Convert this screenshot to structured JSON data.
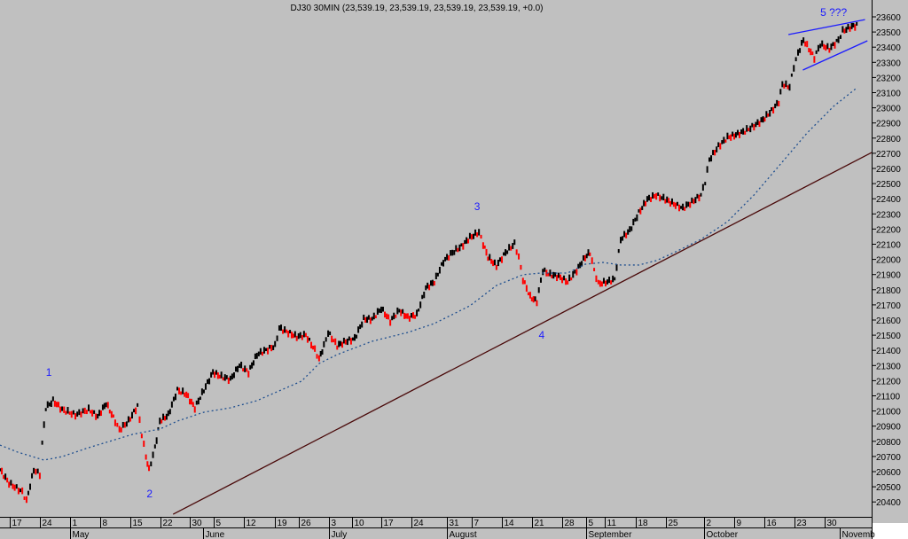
{
  "title": "DJ30 30MIN (23,539.19, 23,539.19, 23,539.19, 23,539.19, +0.0)",
  "colors": {
    "background": "#c0c0c0",
    "up_bar": "#000000",
    "down_bar": "#ff0000",
    "moving_average": "#1f4f8f",
    "trendline": "#4a0a0a",
    "channel": "#1a1aff",
    "wave_label": "#1a1aff"
  },
  "chart_data": {
    "type": "ohlc-line",
    "title": "DJ30 30MIN (23,539.19, 23,539.19, 23,539.19, 23,539.19, +0.0)",
    "x_unit": "trading sessions since Apr 17",
    "xlim": [
      -1.6,
      142.9
    ],
    "ylim": [
      20330,
      23700
    ],
    "yticks": [
      20400,
      20500,
      20600,
      20700,
      20800,
      20900,
      21000,
      21100,
      21200,
      21300,
      21400,
      21500,
      21600,
      21700,
      21800,
      21900,
      22000,
      22100,
      22200,
      22300,
      22400,
      22500,
      22600,
      22700,
      22800,
      22900,
      23000,
      23100,
      23200,
      23300,
      23400,
      23500,
      23600
    ],
    "xticks": [
      {
        "t": 0,
        "label": "17"
      },
      {
        "t": 5,
        "label": "24"
      },
      {
        "t": 10,
        "label": "1"
      },
      {
        "t": 15,
        "label": "8"
      },
      {
        "t": 20,
        "label": "15"
      },
      {
        "t": 25,
        "label": "22"
      },
      {
        "t": 29.9,
        "label": "30"
      },
      {
        "t": 33.8,
        "label": "5"
      },
      {
        "t": 38.8,
        "label": "12"
      },
      {
        "t": 44,
        "label": "19"
      },
      {
        "t": 48,
        "label": "26"
      },
      {
        "t": 53,
        "label": "3"
      },
      {
        "t": 56.7,
        "label": "10"
      },
      {
        "t": 61.6,
        "label": "17"
      },
      {
        "t": 66.6,
        "label": "24"
      },
      {
        "t": 72.5,
        "label": "31"
      },
      {
        "t": 76.6,
        "label": "7"
      },
      {
        "t": 81.6,
        "label": "14"
      },
      {
        "t": 86.6,
        "label": "21"
      },
      {
        "t": 91.6,
        "label": "28"
      },
      {
        "t": 95.6,
        "label": "5"
      },
      {
        "t": 98.7,
        "label": "11"
      },
      {
        "t": 103.8,
        "label": "18"
      },
      {
        "t": 108.8,
        "label": "25"
      },
      {
        "t": 115.1,
        "label": "2"
      },
      {
        "t": 120.1,
        "label": "9"
      },
      {
        "t": 125.1,
        "label": "16"
      },
      {
        "t": 130.1,
        "label": "23"
      },
      {
        "t": 135.1,
        "label": "30"
      }
    ],
    "months": [
      {
        "t": 10,
        "label": "May"
      },
      {
        "t": 32.1,
        "label": "June"
      },
      {
        "t": 52.9,
        "label": "July"
      },
      {
        "t": 72.5,
        "label": "August"
      },
      {
        "t": 95.6,
        "label": "September"
      },
      {
        "t": 115.1,
        "label": "October"
      },
      {
        "t": 137.6,
        "label": "Novemb"
      }
    ],
    "price": [
      [
        -1.6,
        20612
      ],
      [
        -0.1,
        20524
      ],
      [
        2.1,
        20466
      ],
      [
        2.8,
        20407
      ],
      [
        4.0,
        20612
      ],
      [
        5.0,
        20583
      ],
      [
        5.4,
        20787
      ],
      [
        6.0,
        21021
      ],
      [
        7.2,
        21068
      ],
      [
        8.7,
        21009
      ],
      [
        10.9,
        20974
      ],
      [
        13.1,
        21009
      ],
      [
        14.6,
        20963
      ],
      [
        16.0,
        21050
      ],
      [
        17.5,
        20933
      ],
      [
        18.2,
        20875
      ],
      [
        19.7,
        20933
      ],
      [
        21.2,
        21033
      ],
      [
        21.9,
        20846
      ],
      [
        22.6,
        20700
      ],
      [
        23.1,
        20612
      ],
      [
        24.1,
        20758
      ],
      [
        24.9,
        20933
      ],
      [
        26.3,
        20974
      ],
      [
        27.8,
        21138
      ],
      [
        29.3,
        21109
      ],
      [
        30.7,
        21021
      ],
      [
        32.2,
        21138
      ],
      [
        33.7,
        21255
      ],
      [
        35.1,
        21226
      ],
      [
        36.6,
        21208
      ],
      [
        38.1,
        21302
      ],
      [
        39.6,
        21255
      ],
      [
        41.0,
        21372
      ],
      [
        42.5,
        21401
      ],
      [
        44.0,
        21430
      ],
      [
        44.7,
        21547
      ],
      [
        46.2,
        21518
      ],
      [
        47.6,
        21489
      ],
      [
        49.1,
        21501
      ],
      [
        50.6,
        21401
      ],
      [
        51.3,
        21343
      ],
      [
        52.1,
        21430
      ],
      [
        52.8,
        21518
      ],
      [
        54.3,
        21430
      ],
      [
        55.7,
        21459
      ],
      [
        57.2,
        21477
      ],
      [
        58.7,
        21606
      ],
      [
        60.1,
        21606
      ],
      [
        61.6,
        21676
      ],
      [
        63.1,
        21594
      ],
      [
        64.6,
        21664
      ],
      [
        66.0,
        21617
      ],
      [
        67.5,
        21635
      ],
      [
        69.0,
        21811
      ],
      [
        70.4,
        21852
      ],
      [
        71.9,
        21986
      ],
      [
        73.4,
        22045
      ],
      [
        74.9,
        22086
      ],
      [
        76.3,
        22144
      ],
      [
        77.8,
        22179
      ],
      [
        78.5,
        22103
      ],
      [
        79.3,
        22015
      ],
      [
        80.7,
        21957
      ],
      [
        82.2,
        22045
      ],
      [
        83.7,
        22103
      ],
      [
        84.4,
        22015
      ],
      [
        85.1,
        21869
      ],
      [
        86.3,
        21752
      ],
      [
        87.4,
        21723
      ],
      [
        88.4,
        21928
      ],
      [
        89.6,
        21899
      ],
      [
        91.0,
        21887
      ],
      [
        92.5,
        21852
      ],
      [
        94.0,
        21928
      ],
      [
        95.4,
        22015
      ],
      [
        96.2,
        22045
      ],
      [
        96.9,
        21928
      ],
      [
        97.6,
        21840
      ],
      [
        99.1,
        21852
      ],
      [
        100.3,
        21869
      ],
      [
        101.3,
        22132
      ],
      [
        102.8,
        22191
      ],
      [
        104.3,
        22308
      ],
      [
        105.7,
        22395
      ],
      [
        107.2,
        22424
      ],
      [
        108.7,
        22395
      ],
      [
        110.1,
        22366
      ],
      [
        111.6,
        22337
      ],
      [
        113.1,
        22378
      ],
      [
        114.6,
        22424
      ],
      [
        115.3,
        22512
      ],
      [
        116.0,
        22658
      ],
      [
        117.5,
        22746
      ],
      [
        119.0,
        22804
      ],
      [
        120.4,
        22822
      ],
      [
        121.9,
        22846
      ],
      [
        123.4,
        22881
      ],
      [
        124.9,
        22922
      ],
      [
        126.3,
        22980
      ],
      [
        127.5,
        23039
      ],
      [
        128.1,
        23156
      ],
      [
        129.3,
        23138
      ],
      [
        130.0,
        23272
      ],
      [
        130.7,
        23360
      ],
      [
        131.6,
        23448
      ],
      [
        132.5,
        23389
      ],
      [
        133.4,
        23331
      ],
      [
        134.4,
        23419
      ],
      [
        135.9,
        23389
      ],
      [
        137.4,
        23448
      ],
      [
        138.1,
        23506
      ],
      [
        139.6,
        23536
      ],
      [
        140.7,
        23547
      ]
    ],
    "moving_average": [
      [
        -1.6,
        20775
      ],
      [
        1.3,
        20729
      ],
      [
        5.7,
        20676
      ],
      [
        8.7,
        20699
      ],
      [
        13.1,
        20758
      ],
      [
        20.4,
        20846
      ],
      [
        24.9,
        20881
      ],
      [
        27.8,
        20933
      ],
      [
        32.2,
        20992
      ],
      [
        36.6,
        21021
      ],
      [
        41.0,
        21068
      ],
      [
        44.0,
        21121
      ],
      [
        48.4,
        21197
      ],
      [
        51.3,
        21313
      ],
      [
        54.3,
        21372
      ],
      [
        60.1,
        21460
      ],
      [
        66.0,
        21518
      ],
      [
        70.4,
        21577
      ],
      [
        76.3,
        21694
      ],
      [
        80.7,
        21828
      ],
      [
        85.1,
        21899
      ],
      [
        88.1,
        21910
      ],
      [
        92.5,
        21910
      ],
      [
        95.4,
        21968
      ],
      [
        98.4,
        21980
      ],
      [
        101.3,
        21963
      ],
      [
        104.3,
        21963
      ],
      [
        107.2,
        21992
      ],
      [
        110.1,
        22044
      ],
      [
        114.6,
        22132
      ],
      [
        119.0,
        22249
      ],
      [
        123.4,
        22425
      ],
      [
        127.8,
        22629
      ],
      [
        132.2,
        22834
      ],
      [
        136.6,
        23010
      ],
      [
        140.3,
        23127
      ]
    ],
    "trendline": [
      [
        27.1,
        20319
      ],
      [
        142.9,
        22705
      ]
    ],
    "channel_upper": [
      [
        129.1,
        23483
      ],
      [
        141.8,
        23582
      ]
    ],
    "channel_lower": [
      [
        131.5,
        23249
      ],
      [
        142.2,
        23442
      ]
    ],
    "annotations": [
      {
        "t": 6.5,
        "price": 21255,
        "text": "1"
      },
      {
        "t": 23.2,
        "price": 20454,
        "text": "2"
      },
      {
        "t": 77.5,
        "price": 22349,
        "text": "3"
      },
      {
        "t": 88.2,
        "price": 21501,
        "text": "4"
      },
      {
        "t": 136.6,
        "price": 23629,
        "text": "5 ???"
      }
    ]
  }
}
